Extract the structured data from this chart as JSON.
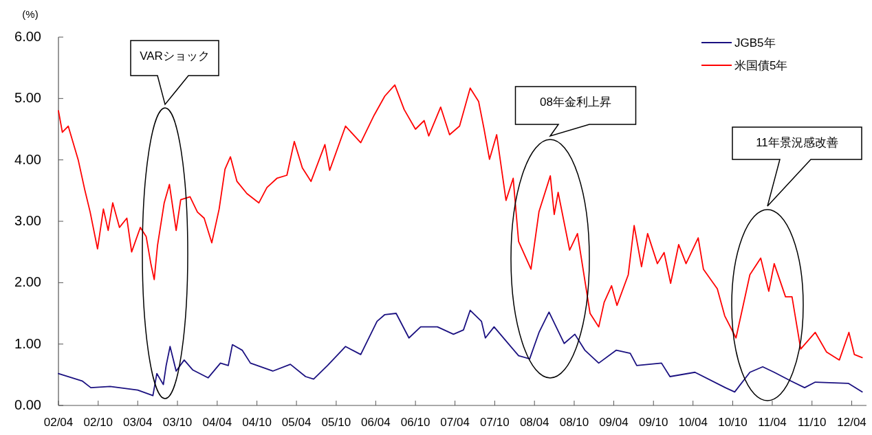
{
  "chart_data": {
    "type": "line",
    "ylabel": "(%)",
    "legend": "top right",
    "grid": false,
    "xlim": [
      "2002-04-01",
      "2012-06-08"
    ],
    "ylim": [
      0,
      6
    ],
    "xticks": [
      {
        "value": "2002-04-01",
        "label": "02/04"
      },
      {
        "value": "2002-10-01",
        "label": "02/10"
      },
      {
        "value": "2003-04-01",
        "label": "03/04"
      },
      {
        "value": "2003-10-01",
        "label": "03/10"
      },
      {
        "value": "2004-04-01",
        "label": "04/04"
      },
      {
        "value": "2004-10-01",
        "label": "04/10"
      },
      {
        "value": "2005-04-01",
        "label": "05/04"
      },
      {
        "value": "2005-10-01",
        "label": "05/10"
      },
      {
        "value": "2006-04-01",
        "label": "06/04"
      },
      {
        "value": "2006-10-01",
        "label": "06/10"
      },
      {
        "value": "2007-04-01",
        "label": "07/04"
      },
      {
        "value": "2007-10-01",
        "label": "07/10"
      },
      {
        "value": "2008-04-01",
        "label": "08/04"
      },
      {
        "value": "2008-10-01",
        "label": "08/10"
      },
      {
        "value": "2009-04-01",
        "label": "09/04"
      },
      {
        "value": "2009-10-01",
        "label": "09/10"
      },
      {
        "value": "2010-04-01",
        "label": "10/04"
      },
      {
        "value": "2010-10-01",
        "label": "10/10"
      },
      {
        "value": "2011-04-01",
        "label": "11/04"
      },
      {
        "value": "2011-10-01",
        "label": "11/10"
      },
      {
        "value": "2012-04-01",
        "label": "12/04"
      }
    ],
    "yticks": [
      {
        "value": 0,
        "label": "0.00"
      },
      {
        "value": 1,
        "label": "1.00"
      },
      {
        "value": 2,
        "label": "2.00"
      },
      {
        "value": 3,
        "label": "3.00"
      },
      {
        "value": 4,
        "label": "4.00"
      },
      {
        "value": 5,
        "label": "5.00"
      },
      {
        "value": 6,
        "label": "6.00"
      }
    ],
    "series": [
      {
        "name": "JGB5年",
        "color": "#1a1080",
        "x": [
          "2002-04-01",
          "2002-07-19",
          "2002-08-28",
          "2002-11-25",
          "2003-04-01",
          "2003-06-10",
          "2003-06-28",
          "2003-07-28",
          "2003-08-10",
          "2003-08-28",
          "2003-09-25",
          "2003-11-01",
          "2003-12-10",
          "2004-02-19",
          "2004-04-16",
          "2004-05-22",
          "2004-06-10",
          "2004-07-25",
          "2004-09-01",
          "2004-12-13",
          "2005-03-04",
          "2005-05-13",
          "2005-06-19",
          "2005-08-22",
          "2005-11-13",
          "2006-01-22",
          "2006-04-07",
          "2006-05-13",
          "2006-07-04",
          "2006-09-01",
          "2006-10-25",
          "2007-01-10",
          "2007-03-25",
          "2007-05-10",
          "2007-06-10",
          "2007-08-01",
          "2007-08-19",
          "2007-09-28",
          "2007-11-22",
          "2008-01-19",
          "2008-03-10",
          "2008-04-22",
          "2008-06-07",
          "2008-08-16",
          "2008-10-04",
          "2008-11-19",
          "2009-01-22",
          "2009-04-13",
          "2009-06-16",
          "2009-07-16",
          "2009-11-07",
          "2009-12-16",
          "2010-04-10",
          "2010-08-28",
          "2010-10-10",
          "2010-12-19",
          "2011-02-16",
          "2011-04-10",
          "2011-06-25",
          "2011-08-28",
          "2011-10-16",
          "2012-03-16",
          "2012-05-19"
        ],
        "values": [
          0.52,
          0.4,
          0.29,
          0.31,
          0.25,
          0.16,
          0.52,
          0.34,
          0.65,
          0.96,
          0.56,
          0.74,
          0.58,
          0.45,
          0.69,
          0.65,
          0.99,
          0.9,
          0.69,
          0.56,
          0.67,
          0.47,
          0.43,
          0.65,
          0.96,
          0.83,
          1.37,
          1.48,
          1.5,
          1.1,
          1.28,
          1.28,
          1.16,
          1.23,
          1.55,
          1.37,
          1.1,
          1.28,
          1.05,
          0.81,
          0.76,
          1.19,
          1.52,
          1.01,
          1.16,
          0.9,
          0.69,
          0.9,
          0.85,
          0.65,
          0.69,
          0.47,
          0.54,
          0.29,
          0.22,
          0.54,
          0.63,
          0.54,
          0.4,
          0.29,
          0.38,
          0.36,
          0.22
        ]
      },
      {
        "name": "米国債5年",
        "color": "#ff0000",
        "x": [
          "2002-04-01",
          "2002-04-19",
          "2002-05-16",
          "2002-07-01",
          "2002-08-01",
          "2002-08-25",
          "2002-09-28",
          "2002-10-25",
          "2002-11-16",
          "2002-12-07",
          "2003-01-07",
          "2003-02-10",
          "2003-03-04",
          "2003-04-13",
          "2003-05-10",
          "2003-06-01",
          "2003-06-16",
          "2003-07-01",
          "2003-08-01",
          "2003-08-25",
          "2003-09-25",
          "2003-10-16",
          "2003-11-28",
          "2004-01-01",
          "2004-02-01",
          "2004-03-07",
          "2004-04-10",
          "2004-05-07",
          "2004-06-01",
          "2004-07-01",
          "2004-08-16",
          "2004-10-10",
          "2004-11-16",
          "2005-01-01",
          "2005-02-16",
          "2005-03-22",
          "2005-04-28",
          "2005-06-07",
          "2005-08-10",
          "2005-09-01",
          "2005-11-13",
          "2006-01-22",
          "2006-03-25",
          "2006-05-13",
          "2006-06-28",
          "2006-08-10",
          "2006-10-01",
          "2006-11-10",
          "2006-12-01",
          "2007-01-25",
          "2007-03-07",
          "2007-04-22",
          "2007-06-10",
          "2007-07-19",
          "2007-08-13",
          "2007-09-07",
          "2007-10-10",
          "2007-11-22",
          "2007-12-25",
          "2008-01-19",
          "2008-03-16",
          "2008-04-22",
          "2008-06-13",
          "2008-07-01",
          "2008-07-19",
          "2008-09-10",
          "2008-10-16",
          "2008-12-13",
          "2009-01-22",
          "2009-02-16",
          "2009-03-22",
          "2009-04-16",
          "2009-06-07",
          "2009-07-04",
          "2009-08-07",
          "2009-09-04",
          "2009-10-19",
          "2009-11-19",
          "2009-12-19",
          "2010-01-25",
          "2010-02-28",
          "2010-04-25",
          "2010-05-19",
          "2010-07-22",
          "2010-08-25",
          "2010-10-16",
          "2010-11-10",
          "2010-12-19",
          "2011-02-07",
          "2011-03-16",
          "2011-04-10",
          "2011-06-01",
          "2011-07-01",
          "2011-08-10",
          "2011-10-16",
          "2011-12-07",
          "2012-02-04",
          "2012-03-19",
          "2012-04-13",
          "2012-05-19"
        ],
        "values": [
          4.8,
          4.45,
          4.55,
          4.0,
          3.5,
          3.15,
          2.55,
          3.2,
          2.85,
          3.3,
          2.9,
          3.05,
          2.5,
          2.9,
          2.75,
          2.3,
          2.05,
          2.6,
          3.3,
          3.6,
          2.85,
          3.35,
          3.4,
          3.15,
          3.05,
          2.65,
          3.2,
          3.85,
          4.05,
          3.65,
          3.45,
          3.3,
          3.55,
          3.7,
          3.75,
          4.3,
          3.87,
          3.65,
          4.25,
          3.83,
          4.55,
          4.28,
          4.73,
          5.04,
          5.22,
          4.82,
          4.5,
          4.64,
          4.39,
          4.86,
          4.41,
          4.55,
          5.17,
          4.95,
          4.5,
          4.01,
          4.41,
          3.34,
          3.7,
          2.67,
          2.22,
          3.16,
          3.74,
          3.11,
          3.47,
          2.53,
          2.8,
          1.5,
          1.28,
          1.68,
          1.95,
          1.63,
          2.13,
          2.93,
          2.26,
          2.8,
          2.31,
          2.49,
          1.99,
          2.62,
          2.31,
          2.73,
          2.22,
          1.9,
          1.46,
          1.1,
          1.5,
          2.13,
          2.4,
          1.86,
          2.31,
          1.77,
          1.77,
          0.92,
          1.19,
          0.87,
          0.74,
          1.19,
          0.83,
          0.78
        ]
      }
    ],
    "annotations": [
      "VARショック",
      "08年金利上昇",
      "11年景況感改善"
    ]
  }
}
